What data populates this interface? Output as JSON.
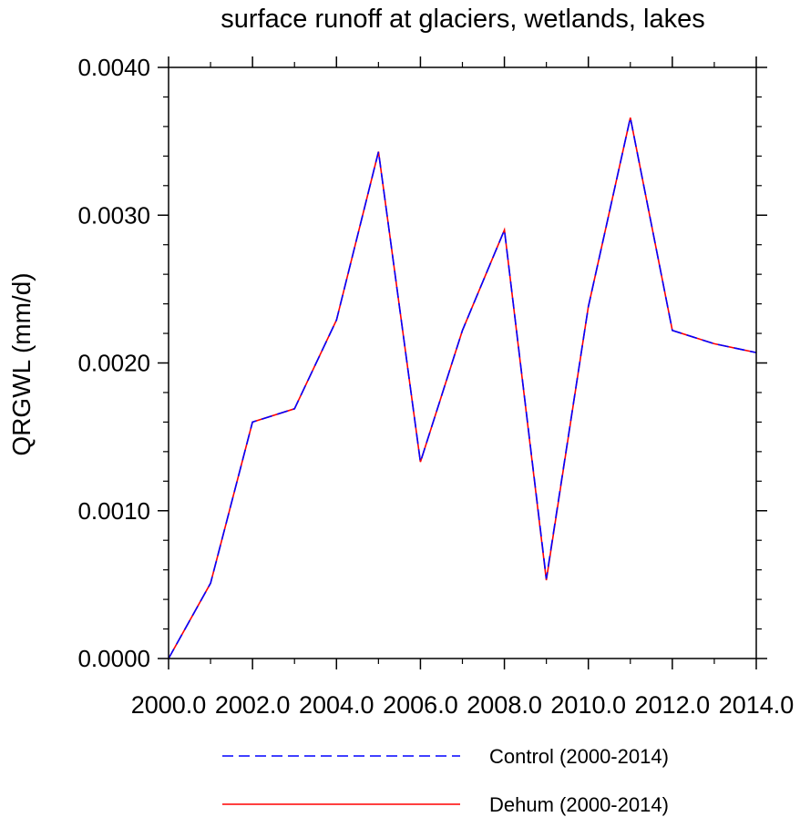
{
  "chart_data": {
    "type": "line",
    "title": "surface runoff at glaciers, wetlands, lakes",
    "xlabel": "",
    "ylabel": "QRGWL  (mm/d)",
    "xlim": [
      2000,
      2014
    ],
    "ylim": [
      0,
      0.004
    ],
    "x_ticks": [
      2000,
      2002,
      2004,
      2006,
      2008,
      2010,
      2012,
      2014
    ],
    "x_tick_labels": [
      "2000.0",
      "2002.0",
      "2004.0",
      "2006.0",
      "2008.0",
      "2010.0",
      "2012.0",
      "2014.0"
    ],
    "y_ticks": [
      0,
      0.001,
      0.002,
      0.003,
      0.004
    ],
    "y_tick_labels": [
      "0.0000",
      "0.0010",
      "0.0020",
      "0.0030",
      "0.0040"
    ],
    "grid": false,
    "legend_position": "bottom",
    "x": [
      2000,
      2001,
      2002,
      2003,
      2004,
      2005,
      2006,
      2007,
      2008,
      2009,
      2010,
      2011,
      2012,
      2013,
      2014
    ],
    "series": [
      {
        "name": "Dehum (2000-2014)",
        "color": "#ff0000",
        "style": "solid",
        "values": [
          0.0,
          0.00051,
          0.0016,
          0.00169,
          0.00229,
          0.00343,
          0.00133,
          0.00222,
          0.0029,
          0.00053,
          0.00238,
          0.00366,
          0.00222,
          0.00213,
          0.00207
        ]
      },
      {
        "name": "Control (2000-2014)",
        "color": "#0000ff",
        "style": "dashed",
        "values": [
          0.0,
          0.00051,
          0.0016,
          0.00169,
          0.00229,
          0.00343,
          0.00133,
          0.00222,
          0.0029,
          0.00054,
          0.00238,
          0.00366,
          0.00222,
          0.00213,
          0.00207
        ]
      }
    ],
    "legend": [
      {
        "label": "Control (2000-2014)",
        "color": "#0000ff",
        "style": "dashed"
      },
      {
        "label": "Dehum (2000-2014)",
        "color": "#ff0000",
        "style": "solid"
      }
    ]
  }
}
